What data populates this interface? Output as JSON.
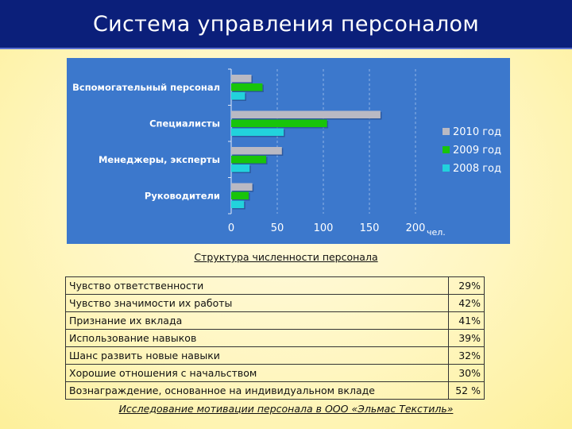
{
  "header": {
    "title": "Система управления персоналом"
  },
  "chart_data": {
    "type": "bar",
    "orientation": "horizontal",
    "categories": [
      "Вспомогательный персонал",
      "Специалисты",
      "Менеджеры, эксперты",
      "Руководители"
    ],
    "series": [
      {
        "name": "2010 год",
        "color": "#b9b9c3",
        "values": [
          22,
          162,
          55,
          23
        ]
      },
      {
        "name": "2009 год",
        "color": "#18c40a",
        "values": [
          34,
          104,
          38,
          19
        ]
      },
      {
        "name": "2008 год",
        "color": "#22d2dc",
        "values": [
          15,
          57,
          20,
          14
        ]
      }
    ],
    "x_ticks": [
      "0",
      "50",
      "100",
      "150",
      "200"
    ],
    "xlim": [
      0,
      200
    ],
    "x_unit": "чел.",
    "grid": true,
    "legend_position": "right",
    "background_color": "#3c78cc"
  },
  "chart_caption": "Структура численности персонала",
  "table": {
    "rows": [
      {
        "label": "Чувство ответственности",
        "value": "29%"
      },
      {
        "label": "Чувство значимости их работы",
        "value": "42%"
      },
      {
        "label": "Признание их вклада",
        "value": "41%"
      },
      {
        "label": "Использование навыков",
        "value": "39%"
      },
      {
        "label": "Шанс развить новые навыки",
        "value": "32%"
      },
      {
        "label": "Хорошие отношения с начальством",
        "value": "30%"
      },
      {
        "label": "Вознаграждение, основанное на индивидуальном вкладе",
        "value": "52 %"
      }
    ],
    "footer": "Исследование мотивации персонала в ООО «Эльмас Текстиль»"
  }
}
